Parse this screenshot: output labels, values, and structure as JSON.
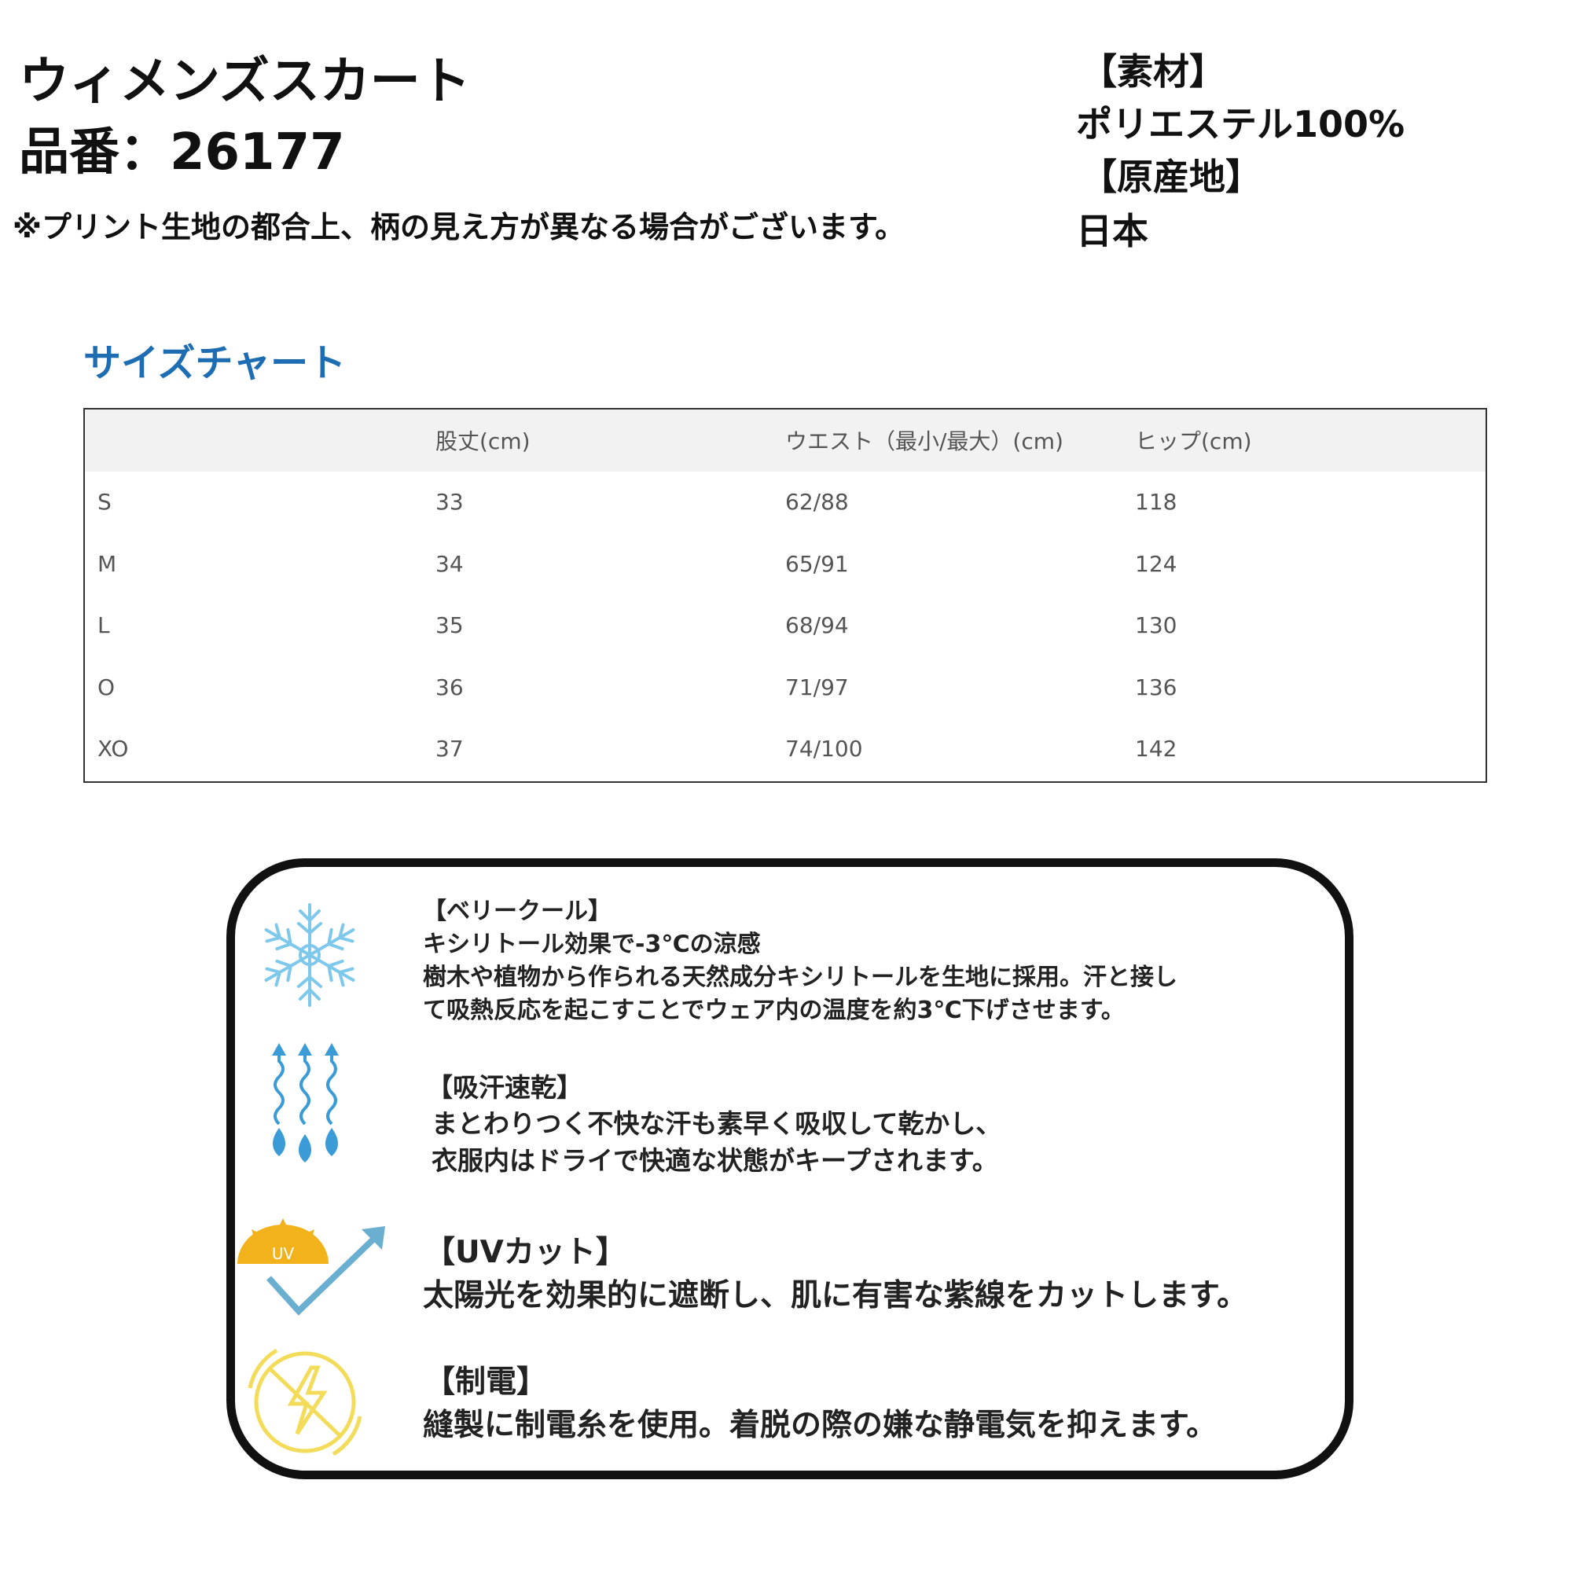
{
  "product": {
    "title": "ウィメンズスカート",
    "part_number": "品番：26177",
    "note": "※プリント生地の都合上、柄の見え方が異なる場合がございます。"
  },
  "material": {
    "material_label": "【素材】",
    "material_value": "ポリエステル100%",
    "origin_label": "【原産地】",
    "origin_value": "日本"
  },
  "size_chart": {
    "title": "サイズチャート",
    "headers": [
      "",
      "股丈(cm)",
      "ウエスト（最小/最大）(cm)",
      "ヒップ(cm)"
    ],
    "rows": [
      [
        "S",
        "33",
        "62/88",
        "118"
      ],
      [
        "M",
        "34",
        "65/91",
        "124"
      ],
      [
        "L",
        "35",
        "68/94",
        "130"
      ],
      [
        "O",
        "36",
        "71/97",
        "136"
      ],
      [
        "XO",
        "37",
        "74/100",
        "142"
      ]
    ]
  },
  "features": [
    {
      "icon": "snowflake-icon",
      "heading": "【ベリークール】",
      "lines": [
        "キシリトール効果で-3℃の涼感",
        "樹木や植物から作られる天然成分キシリトールを生地に採用。汗と接し",
        "て吸熱反応を起こすことでウェア内の温度を約3℃下げさせます。"
      ]
    },
    {
      "icon": "sweat-drops-icon",
      "heading": "【吸汗速乾】",
      "lines": [
        "まとわりつく不快な汗も素早く吸収して乾かし、",
        "衣服内はドライで快適な状態がキープされます。"
      ]
    },
    {
      "icon": "uv-cut-icon",
      "heading": "【UVカット】",
      "lines": [
        "太陽光を効果的に遮断し、肌に有害な紫線をカットします。"
      ],
      "icon_text": "UV"
    },
    {
      "icon": "antistatic-icon",
      "heading": "【制電】",
      "lines": [
        "縫製に制電糸を使用。着脱の際の嫌な静電気を抑えます。"
      ]
    }
  ],
  "colors": {
    "chart_title": "#1e6db3",
    "snow": "#7ec8ec",
    "drops": "#3a9bd6",
    "sun": "#f2b21b",
    "check": "#6aaed0",
    "static": "#f3dc5a"
  }
}
